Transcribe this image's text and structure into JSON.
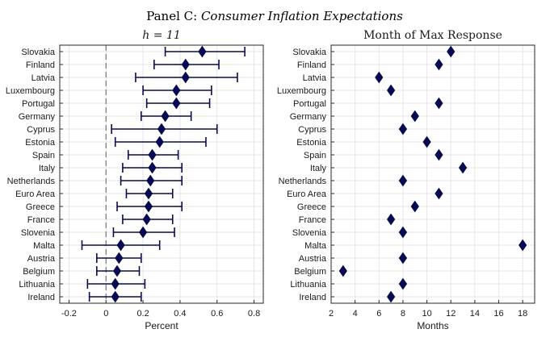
{
  "figure": {
    "title_prefix": "Panel C: ",
    "title_italic": "Consumer Inflation Expectations"
  },
  "colors": {
    "marker": "#0a0a50",
    "grid": "#e6e6e6",
    "axis": "#262626",
    "zero": "#777777"
  },
  "chart_data": [
    {
      "type": "scatter",
      "subtitle": "h = 11",
      "xlabel": "Percent",
      "xlim": [
        -0.25,
        0.85
      ],
      "xticks": [
        -0.2,
        0,
        0.2,
        0.4,
        0.6,
        0.8
      ],
      "xtick_labels": [
        "-0.2",
        "0",
        "0.2",
        "0.4",
        "0.6",
        "0.8"
      ],
      "grid": true,
      "zero_line": "dashed",
      "categories": [
        "Slovakia",
        "Finland",
        "Latvia",
        "Luxembourg",
        "Portugal",
        "Germany",
        "Cyprus",
        "Estonia",
        "Spain",
        "Italy",
        "Netherlands",
        "Euro Area",
        "Greece",
        "France",
        "Slovenia",
        "Malta",
        "Austria",
        "Belgium",
        "Lithuania",
        "Ireland"
      ],
      "values": [
        0.52,
        0.43,
        0.43,
        0.38,
        0.38,
        0.32,
        0.3,
        0.29,
        0.25,
        0.25,
        0.24,
        0.23,
        0.23,
        0.22,
        0.2,
        0.08,
        0.07,
        0.06,
        0.05,
        0.05
      ],
      "lower": [
        0.32,
        0.26,
        0.16,
        0.2,
        0.22,
        0.19,
        0.03,
        0.05,
        0.12,
        0.09,
        0.08,
        0.11,
        0.06,
        0.09,
        0.04,
        -0.13,
        -0.05,
        -0.05,
        -0.1,
        -0.09
      ],
      "upper": [
        0.75,
        0.61,
        0.71,
        0.57,
        0.56,
        0.46,
        0.6,
        0.54,
        0.39,
        0.41,
        0.41,
        0.36,
        0.41,
        0.36,
        0.37,
        0.29,
        0.19,
        0.18,
        0.21,
        0.19
      ]
    },
    {
      "type": "scatter",
      "subtitle": "Month of Max Response",
      "xlabel": "Months",
      "xlim": [
        2,
        19
      ],
      "xticks": [
        2,
        4,
        6,
        8,
        10,
        12,
        14,
        16,
        18
      ],
      "xtick_labels": [
        "2",
        "4",
        "6",
        "8",
        "10",
        "12",
        "14",
        "16",
        "18"
      ],
      "grid": true,
      "categories": [
        "Slovakia",
        "Finland",
        "Latvia",
        "Luxembourg",
        "Portugal",
        "Germany",
        "Cyprus",
        "Estonia",
        "Spain",
        "Italy",
        "Netherlands",
        "Euro Area",
        "Greece",
        "France",
        "Slovenia",
        "Malta",
        "Austria",
        "Belgium",
        "Lithuania",
        "Ireland"
      ],
      "values": [
        12,
        11,
        6,
        7,
        11,
        9,
        8,
        10,
        11,
        13,
        8,
        11,
        9,
        7,
        8,
        18,
        8,
        3,
        8,
        7
      ]
    }
  ]
}
